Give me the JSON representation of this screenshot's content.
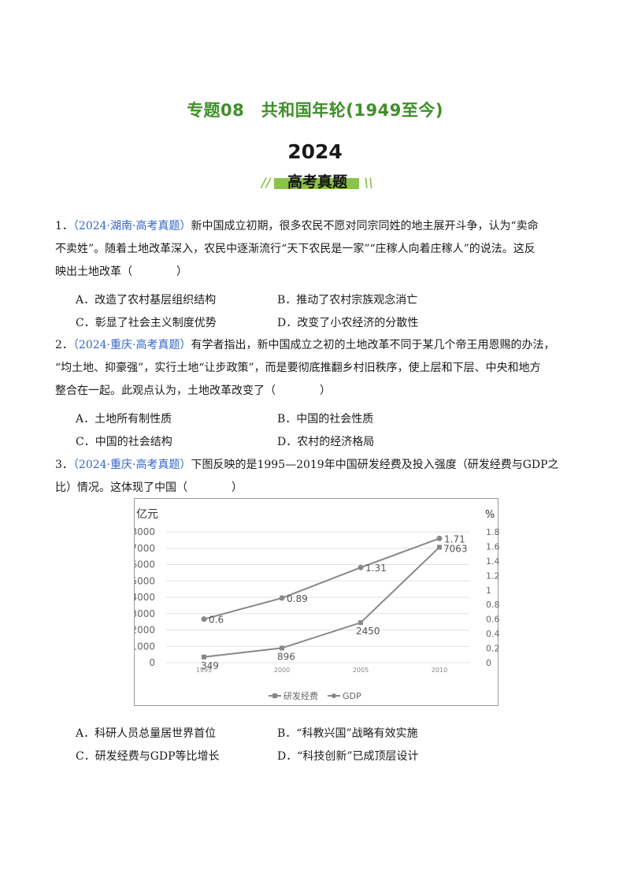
{
  "header": {
    "title": "专题08　共和国年轮(1949至今)",
    "year": "2024",
    "banner": "高考真题",
    "banner_slash_left": "//",
    "banner_slash_right": "\\\\"
  },
  "questions": [
    {
      "number": "1．",
      "source": "（2024·湖南·高考真题）",
      "lines": [
        "新中国成立初期，很多农民不愿对同宗同姓的地主展开斗争，认为“卖命",
        "不卖姓”。随着土地改革深入，农民中逐渐流行“天下农民是一家”“庄稼人向着庄稼人”的说法。这反",
        "映出土地改革（　　　　）"
      ],
      "options": [
        "A．改造了农村基层组织结构",
        "B．推动了农村宗族观念消亡",
        "C．彰显了社会主义制度优势",
        "D．改变了小农经济的分散性"
      ]
    },
    {
      "number": "2．",
      "source": "（2024·重庆·高考真题）",
      "lines": [
        "有学者指出，新中国成立之初的土地改革不同于某几个帝王用恩赐的办法，",
        "“均土地、抑豪强”，实行土地“让步政策”，而是要彻底推翻乡村旧秩序，使上层和下层、中央和地方",
        "整合在一起。此观点认为，土地改革改变了（　　　　）"
      ],
      "options": [
        "A．土地所有制性质",
        "B．中国的社会性质",
        "C．中国的社会结构",
        "D．农村的经济格局"
      ]
    },
    {
      "number": "3．",
      "source": "（2024·重庆·高考真题）",
      "lines": [
        "下图反映的是1995—2019年中国研发经费及投入强度（研发经费与GDP之",
        "比）情况。这体现了中国（　　　　）"
      ],
      "options": [
        "A．科研人员总量居世界首位",
        "B．“科教兴国”战略有效实施",
        "C．研发经费与GDP等比增长",
        "D．“科技创新”已成顶层设计"
      ]
    }
  ],
  "chart_data": {
    "type": "line",
    "left_unit": "亿元",
    "right_unit": "%",
    "x": [
      "1995",
      "2000",
      "2005",
      "2010"
    ],
    "left_axis": {
      "ylim": [
        0,
        8000
      ],
      "ticks": [
        "0",
        "1000",
        "2000",
        "3000",
        "4000",
        "5000",
        "6000",
        "7000",
        "8000"
      ]
    },
    "right_axis": {
      "ylim": [
        0,
        1.8
      ],
      "ticks": [
        "0",
        "0.2",
        "0.4",
        "0.6",
        "0.8",
        "1",
        "1.2",
        "1.4",
        "1.6",
        "1.8"
      ]
    },
    "series": [
      {
        "name": "研发经费",
        "axis": "left",
        "values": [
          349,
          896,
          2450,
          7063
        ],
        "labels": [
          "349",
          "896",
          "2450",
          "7063"
        ],
        "marker": "square"
      },
      {
        "name": "GDP",
        "axis": "right",
        "values": [
          0.6,
          0.89,
          1.31,
          1.71
        ],
        "labels": [
          "0.6",
          "0.89",
          "1.31",
          "1.71"
        ],
        "marker": "circle"
      }
    ],
    "grid": true,
    "legend_position": "bottom",
    "color": "#888888"
  }
}
